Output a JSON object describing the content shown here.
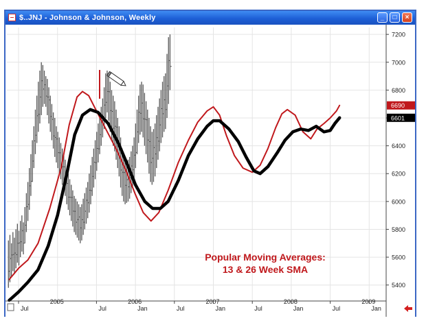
{
  "window": {
    "title": "$..JNJ - Johnson & Johnson, Weekly",
    "minimize_label": "_",
    "maximize_label": "□",
    "close_label": "×"
  },
  "annotation": {
    "line1": "Popular Moving Averages:",
    "line2": "13 & 26 Week SMA"
  },
  "colors": {
    "price_bars": "#555555",
    "sma13": "#c0181c",
    "sma26": "#000000",
    "annotation": "#c0181c",
    "frame": "#3a66c4"
  },
  "chart_data": {
    "type": "line",
    "title": "$..JNJ - Johnson & Johnson, Weekly",
    "xlabel": "",
    "ylabel": "",
    "x_ticks": [
      {
        "label": "Jul",
        "t": 2004.5
      },
      {
        "label": "2005",
        "t": 2005.0
      },
      {
        "label": "Jul",
        "t": 2005.5
      },
      {
        "label": "2006",
        "t": 2006.0
      },
      {
        "label": "Jan",
        "t": 2006.0
      },
      {
        "label": "Jul",
        "t": 2006.5
      },
      {
        "label": "2007",
        "t": 2007.0
      },
      {
        "label": "Jan",
        "t": 2007.0
      },
      {
        "label": "Jul",
        "t": 2007.5
      },
      {
        "label": "2008",
        "t": 2008.0
      },
      {
        "label": "Jan",
        "t": 2008.0
      },
      {
        "label": "Jul",
        "t": 2008.5
      },
      {
        "label": "2009",
        "t": 2009.0
      },
      {
        "label": "Jan",
        "t": 2009.0
      }
    ],
    "y_ticks": [
      5400,
      5600,
      5800,
      6000,
      6200,
      6400,
      6600,
      6800,
      7000,
      7200
    ],
    "ylim": [
      5300,
      7250
    ],
    "xlim": [
      2004.35,
      2009.2
    ],
    "grid": true,
    "last_values": [
      {
        "series": "sma13",
        "label": "6690",
        "value": 6690
      },
      {
        "series": "sma26",
        "label": "6601",
        "value": 6601
      }
    ],
    "series": [
      {
        "key": "sma13",
        "points": [
          [
            2004.38,
            5440
          ],
          [
            2004.5,
            5520
          ],
          [
            2004.62,
            5580
          ],
          [
            2004.75,
            5700
          ],
          [
            2004.9,
            5950
          ],
          [
            2005.05,
            6250
          ],
          [
            2005.15,
            6550
          ],
          [
            2005.25,
            6750
          ],
          [
            2005.32,
            6790
          ],
          [
            2005.4,
            6760
          ],
          [
            2005.5,
            6650
          ],
          [
            2005.62,
            6520
          ],
          [
            2005.75,
            6380
          ],
          [
            2005.88,
            6220
          ],
          [
            2006.0,
            6050
          ],
          [
            2006.1,
            5920
          ],
          [
            2006.2,
            5860
          ],
          [
            2006.3,
            5920
          ],
          [
            2006.42,
            6080
          ],
          [
            2006.55,
            6280
          ],
          [
            2006.68,
            6440
          ],
          [
            2006.8,
            6570
          ],
          [
            2006.92,
            6650
          ],
          [
            2007.0,
            6680
          ],
          [
            2007.08,
            6620
          ],
          [
            2007.17,
            6470
          ],
          [
            2007.27,
            6330
          ],
          [
            2007.38,
            6240
          ],
          [
            2007.5,
            6210
          ],
          [
            2007.6,
            6260
          ],
          [
            2007.7,
            6380
          ],
          [
            2007.8,
            6530
          ],
          [
            2007.88,
            6630
          ],
          [
            2007.95,
            6660
          ],
          [
            2008.05,
            6620
          ],
          [
            2008.15,
            6500
          ],
          [
            2008.25,
            6450
          ],
          [
            2008.33,
            6520
          ],
          [
            2008.42,
            6560
          ],
          [
            2008.5,
            6600
          ],
          [
            2008.58,
            6650
          ],
          [
            2008.62,
            6690
          ]
        ]
      },
      {
        "key": "sma26",
        "points": [
          [
            2004.38,
            5290
          ],
          [
            2004.5,
            5350
          ],
          [
            2004.62,
            5420
          ],
          [
            2004.75,
            5510
          ],
          [
            2004.88,
            5680
          ],
          [
            2005.0,
            5900
          ],
          [
            2005.12,
            6200
          ],
          [
            2005.22,
            6480
          ],
          [
            2005.32,
            6620
          ],
          [
            2005.42,
            6660
          ],
          [
            2005.52,
            6640
          ],
          [
            2005.65,
            6560
          ],
          [
            2005.78,
            6420
          ],
          [
            2005.9,
            6260
          ],
          [
            2006.0,
            6120
          ],
          [
            2006.12,
            6000
          ],
          [
            2006.22,
            5950
          ],
          [
            2006.32,
            5950
          ],
          [
            2006.42,
            6000
          ],
          [
            2006.55,
            6150
          ],
          [
            2006.68,
            6330
          ],
          [
            2006.8,
            6450
          ],
          [
            2006.92,
            6540
          ],
          [
            2007.0,
            6580
          ],
          [
            2007.08,
            6580
          ],
          [
            2007.2,
            6520
          ],
          [
            2007.32,
            6430
          ],
          [
            2007.42,
            6320
          ],
          [
            2007.52,
            6220
          ],
          [
            2007.6,
            6200
          ],
          [
            2007.7,
            6250
          ],
          [
            2007.82,
            6350
          ],
          [
            2007.92,
            6440
          ],
          [
            2008.02,
            6500
          ],
          [
            2008.12,
            6520
          ],
          [
            2008.22,
            6510
          ],
          [
            2008.32,
            6540
          ],
          [
            2008.42,
            6500
          ],
          [
            2008.5,
            6510
          ],
          [
            2008.56,
            6560
          ],
          [
            2008.62,
            6601
          ]
        ]
      }
    ],
    "price_range_bars": {
      "start": 2004.37,
      "step": 0.0192,
      "ranges": [
        [
          5380,
          5720
        ],
        [
          5420,
          5760
        ],
        [
          5460,
          5700
        ],
        [
          5500,
          5780
        ],
        [
          5480,
          5740
        ],
        [
          5520,
          5800
        ],
        [
          5560,
          5840
        ],
        [
          5540,
          5790
        ],
        [
          5600,
          5860
        ],
        [
          5640,
          5900
        ],
        [
          5620,
          5850
        ],
        [
          5700,
          5960
        ],
        [
          5780,
          6060
        ],
        [
          5860,
          6140
        ],
        [
          5940,
          6240
        ],
        [
          6040,
          6340
        ],
        [
          6140,
          6440
        ],
        [
          6240,
          6540
        ],
        [
          6340,
          6660
        ],
        [
          6420,
          6760
        ],
        [
          6500,
          6860
        ],
        [
          6560,
          6940
        ],
        [
          6620,
          7000
        ],
        [
          6680,
          6980
        ],
        [
          6700,
          6940
        ],
        [
          6680,
          6900
        ],
        [
          6620,
          6880
        ],
        [
          6560,
          6820
        ],
        [
          6500,
          6760
        ],
        [
          6440,
          6700
        ],
        [
          6380,
          6640
        ],
        [
          6320,
          6600
        ],
        [
          6280,
          6540
        ],
        [
          6240,
          6500
        ],
        [
          6200,
          6460
        ],
        [
          6160,
          6420
        ],
        [
          6120,
          6380
        ],
        [
          6080,
          6340
        ],
        [
          6040,
          6300
        ],
        [
          5980,
          6240
        ],
        [
          5940,
          6200
        ],
        [
          5900,
          6160
        ],
        [
          5860,
          6120
        ],
        [
          5820,
          6080
        ],
        [
          5780,
          6040
        ],
        [
          5760,
          6020
        ],
        [
          5740,
          6000
        ],
        [
          5720,
          5980
        ],
        [
          5700,
          5960
        ],
        [
          5720,
          5980
        ],
        [
          5760,
          6020
        ],
        [
          5800,
          6060
        ],
        [
          5840,
          6100
        ],
        [
          5880,
          6140
        ],
        [
          5920,
          6200
        ],
        [
          5980,
          6260
        ],
        [
          6040,
          6320
        ],
        [
          6100,
          6380
        ],
        [
          6160,
          6440
        ],
        [
          6220,
          6500
        ],
        [
          6280,
          6560
        ],
        [
          6340,
          6620
        ],
        [
          6400,
          6680
        ],
        [
          6460,
          6740
        ],
        [
          6520,
          6820
        ],
        [
          6600,
          6920
        ],
        [
          6640,
          6940
        ],
        [
          6580,
          6900
        ],
        [
          6500,
          6860
        ],
        [
          6440,
          6800
        ],
        [
          6400,
          6760
        ],
        [
          6360,
          6720
        ],
        [
          6300,
          6660
        ],
        [
          6240,
          6600
        ],
        [
          6180,
          6540
        ],
        [
          6100,
          6460
        ],
        [
          6040,
          6380
        ],
        [
          6000,
          6320
        ],
        [
          5980,
          6300
        ],
        [
          5990,
          6280
        ],
        [
          6000,
          6300
        ],
        [
          6020,
          6320
        ],
        [
          6060,
          6360
        ],
        [
          6100,
          6400
        ],
        [
          6160,
          6460
        ],
        [
          6240,
          6560
        ],
        [
          6340,
          6660
        ],
        [
          6420,
          6760
        ],
        [
          6480,
          6840
        ],
        [
          6500,
          6860
        ],
        [
          6460,
          6840
        ],
        [
          6400,
          6780
        ],
        [
          6340,
          6720
        ],
        [
          6280,
          6660
        ],
        [
          6200,
          6600
        ],
        [
          6140,
          6540
        ],
        [
          6120,
          6500
        ],
        [
          6140,
          6520
        ],
        [
          6180,
          6560
        ],
        [
          6240,
          6620
        ],
        [
          6300,
          6680
        ],
        [
          6360,
          6740
        ],
        [
          6420,
          6800
        ],
        [
          6460,
          6860
        ],
        [
          6500,
          6900
        ],
        [
          6520,
          6920
        ],
        [
          6600,
          7060
        ],
        [
          6700,
          7180
        ],
        [
          6800,
          7200
        ]
      ]
    }
  }
}
